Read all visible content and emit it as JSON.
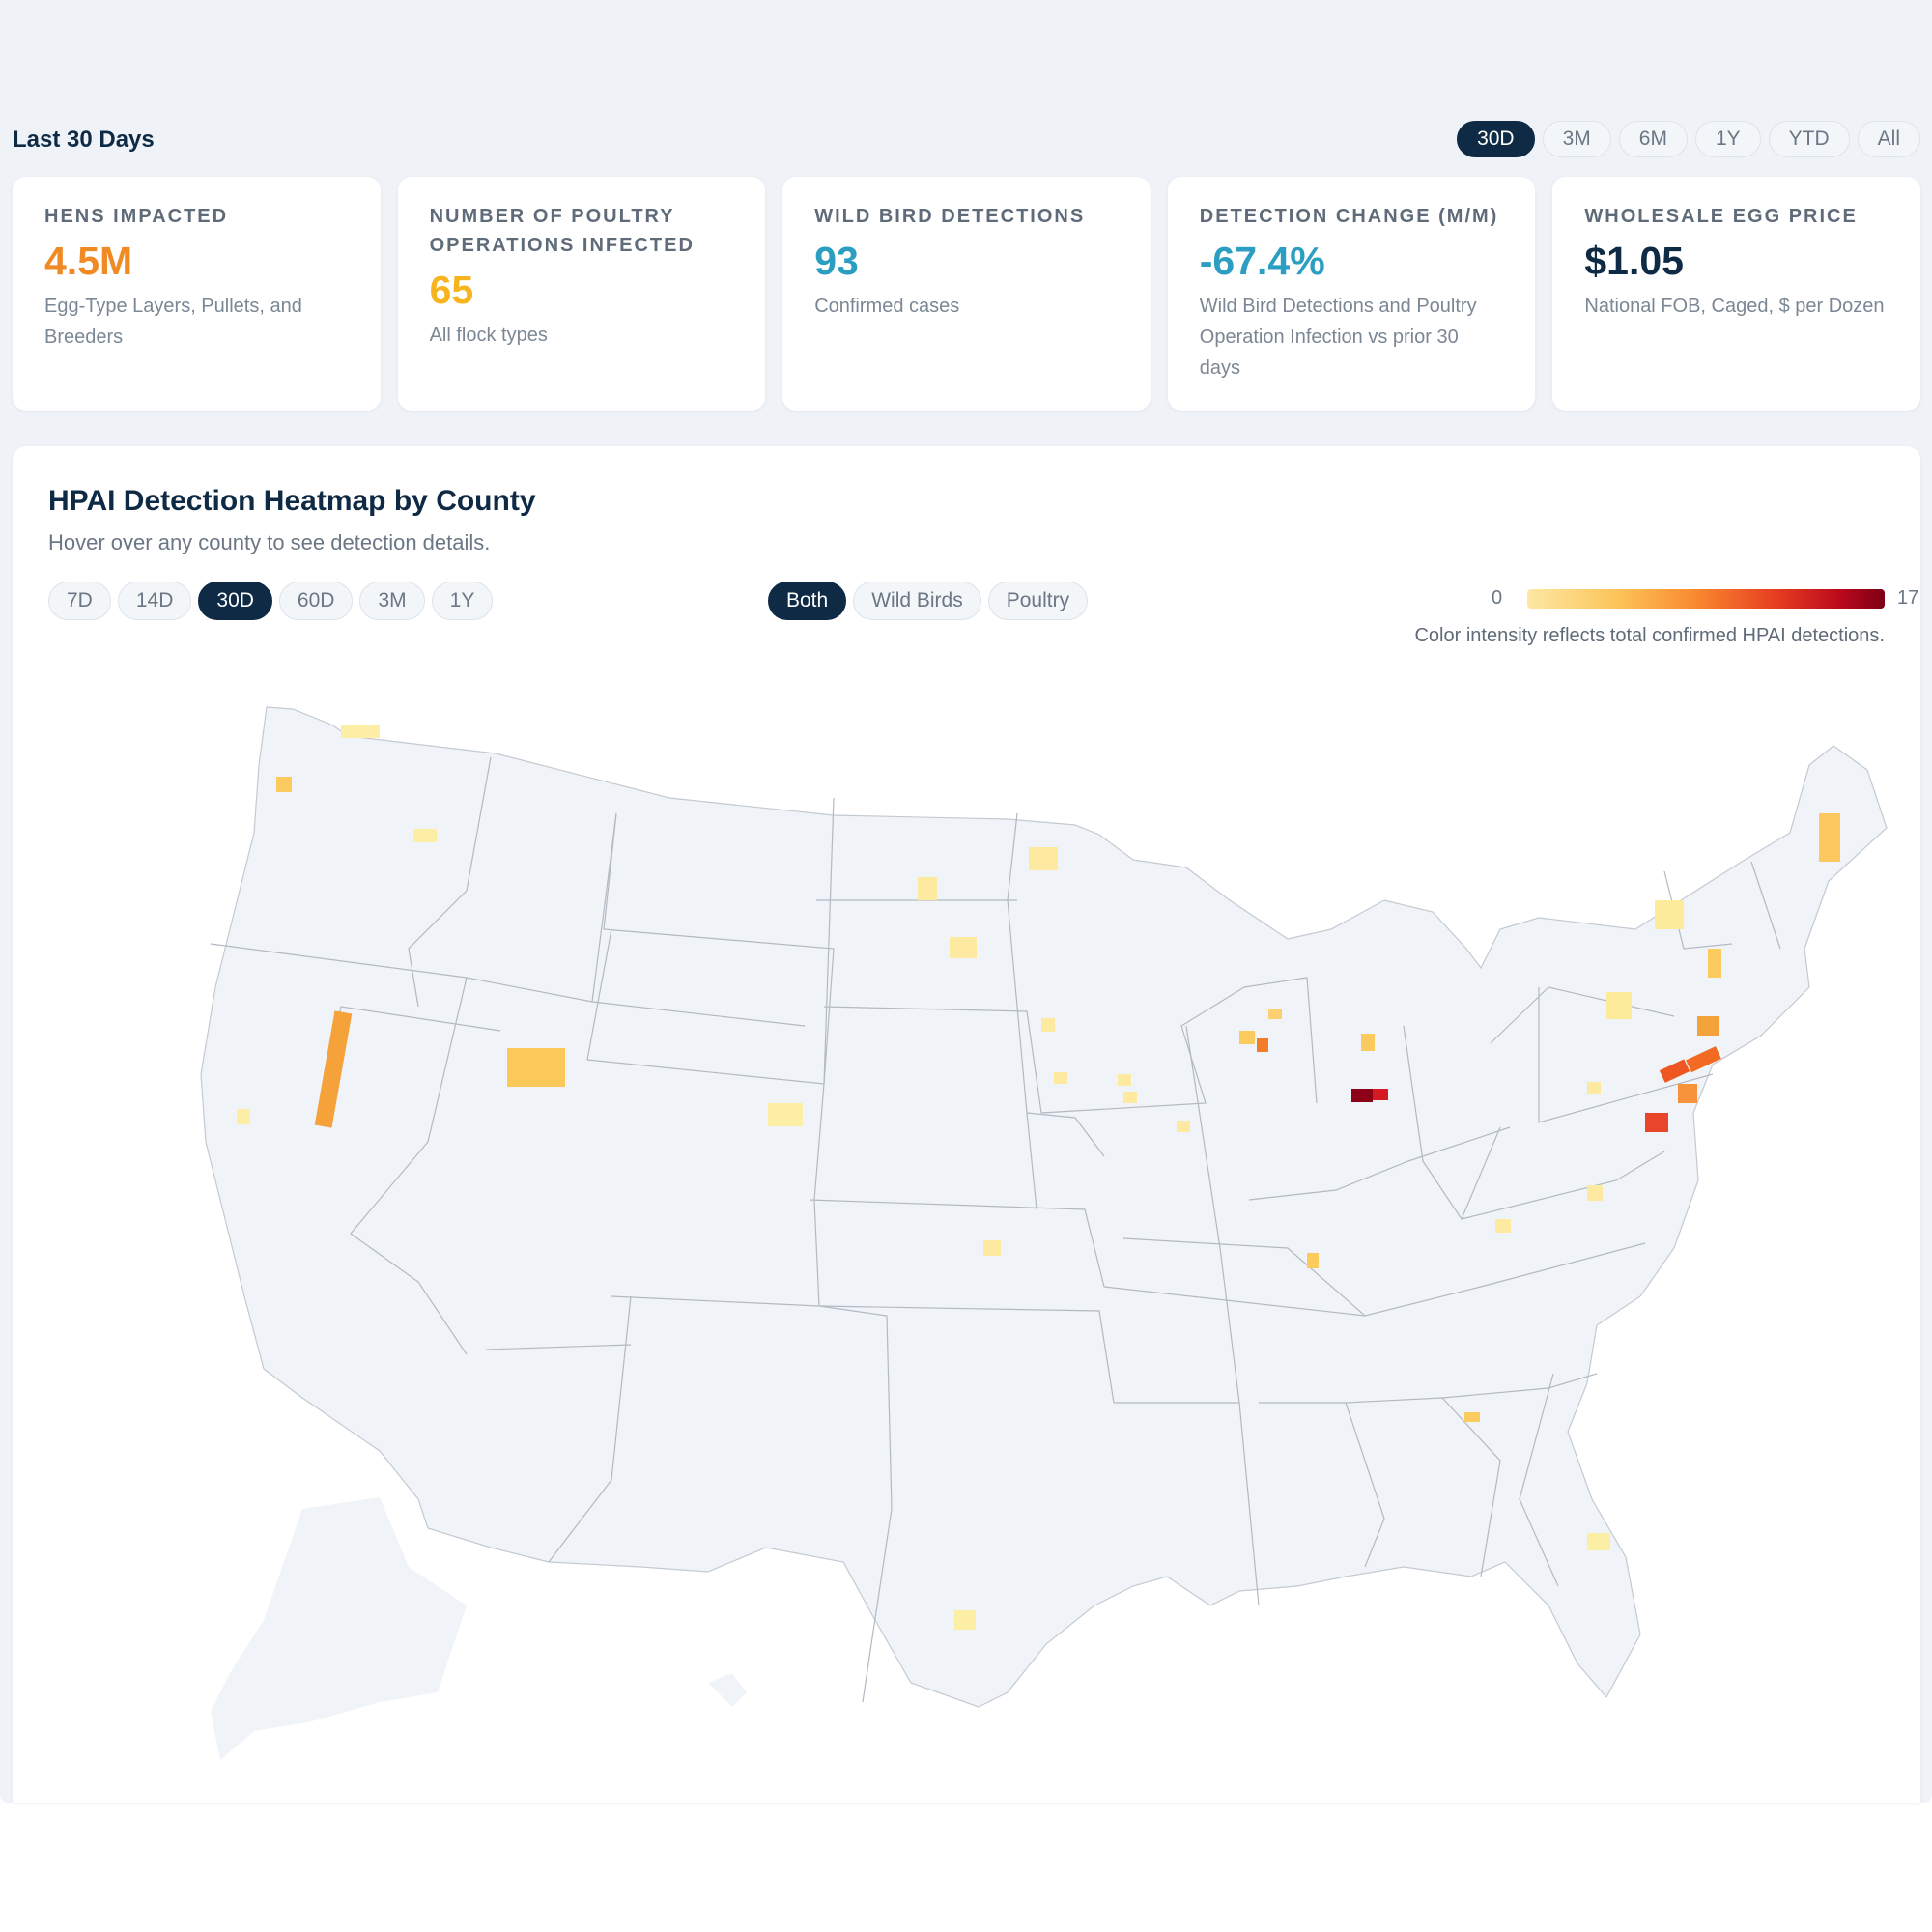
{
  "header": {
    "period_title": "Last 30 Days",
    "ranges": [
      "30D",
      "3M",
      "6M",
      "1Y",
      "YTD",
      "All"
    ],
    "active_range": "30D"
  },
  "stats": [
    {
      "label": "HENS IMPACTED",
      "value": "4.5M",
      "description": "Egg-Type Layers, Pullets, and Breeders",
      "color": "#f08a24"
    },
    {
      "label": "NUMBER OF POULTRY OPERATIONS INFECTED",
      "value": "65",
      "description": "All flock types",
      "color": "#f6b51e"
    },
    {
      "label": "WILD BIRD DETECTIONS",
      "value": "93",
      "description": "Confirmed cases",
      "color": "#2b9ec2"
    },
    {
      "label": "DETECTION CHANGE (M/M)",
      "value": "-67.4%",
      "description": "Wild Bird Detections and Poultry Operation Infection vs prior 30 days",
      "color": "#2b9ec2"
    },
    {
      "label": "WHOLESALE EGG PRICE",
      "value": "$1.05",
      "description": "National FOB, Caged, $ per Dozen",
      "color": "#0f2a44"
    }
  ],
  "heatmap": {
    "title": "HPAI Detection Heatmap by County",
    "subtitle": "Hover over any county to see detection details.",
    "windows": [
      "7D",
      "14D",
      "30D",
      "60D",
      "3M",
      "1Y"
    ],
    "active_window": "30D",
    "types": [
      "Both",
      "Wild Birds",
      "Poultry"
    ],
    "active_type": "Both",
    "legend_min": "0",
    "legend_max": "17",
    "legend_caption": "Color intensity reflects total confirmed HPAI detections.",
    "colors": {
      "low": "#fde8a4",
      "mid": "#f8872e",
      "high": "#7d0016",
      "land": "#f0f3f8",
      "border": "#b9bfc8"
    }
  }
}
